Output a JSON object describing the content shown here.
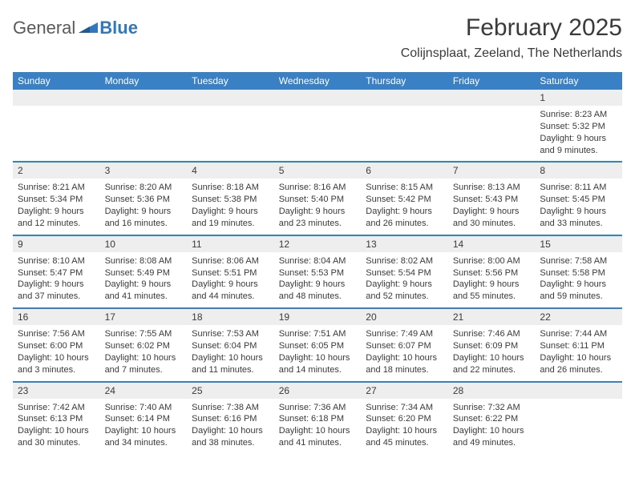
{
  "colors": {
    "header_bg": "#3a80c4",
    "header_text": "#ffffff",
    "daynum_bg": "#eeeeee",
    "text": "#3a3a3a",
    "week_border": "#3a80c4",
    "blue_brand": "#2f78bd",
    "gray_brand": "#5a5a5a"
  },
  "logo": {
    "part1": "General",
    "part2": "Blue"
  },
  "title": {
    "main": "February 2025",
    "location": "Colijnsplaat, Zeeland, The Netherlands"
  },
  "day_headers": [
    "Sunday",
    "Monday",
    "Tuesday",
    "Wednesday",
    "Thursday",
    "Friday",
    "Saturday"
  ],
  "weeks": [
    [
      {
        "blank": true
      },
      {
        "blank": true
      },
      {
        "blank": true
      },
      {
        "blank": true
      },
      {
        "blank": true
      },
      {
        "blank": true
      },
      {
        "num": "1",
        "sunrise": "Sunrise: 8:23 AM",
        "sunset": "Sunset: 5:32 PM",
        "daylight1": "Daylight: 9 hours",
        "daylight2": "and 9 minutes."
      }
    ],
    [
      {
        "num": "2",
        "sunrise": "Sunrise: 8:21 AM",
        "sunset": "Sunset: 5:34 PM",
        "daylight1": "Daylight: 9 hours",
        "daylight2": "and 12 minutes."
      },
      {
        "num": "3",
        "sunrise": "Sunrise: 8:20 AM",
        "sunset": "Sunset: 5:36 PM",
        "daylight1": "Daylight: 9 hours",
        "daylight2": "and 16 minutes."
      },
      {
        "num": "4",
        "sunrise": "Sunrise: 8:18 AM",
        "sunset": "Sunset: 5:38 PM",
        "daylight1": "Daylight: 9 hours",
        "daylight2": "and 19 minutes."
      },
      {
        "num": "5",
        "sunrise": "Sunrise: 8:16 AM",
        "sunset": "Sunset: 5:40 PM",
        "daylight1": "Daylight: 9 hours",
        "daylight2": "and 23 minutes."
      },
      {
        "num": "6",
        "sunrise": "Sunrise: 8:15 AM",
        "sunset": "Sunset: 5:42 PM",
        "daylight1": "Daylight: 9 hours",
        "daylight2": "and 26 minutes."
      },
      {
        "num": "7",
        "sunrise": "Sunrise: 8:13 AM",
        "sunset": "Sunset: 5:43 PM",
        "daylight1": "Daylight: 9 hours",
        "daylight2": "and 30 minutes."
      },
      {
        "num": "8",
        "sunrise": "Sunrise: 8:11 AM",
        "sunset": "Sunset: 5:45 PM",
        "daylight1": "Daylight: 9 hours",
        "daylight2": "and 33 minutes."
      }
    ],
    [
      {
        "num": "9",
        "sunrise": "Sunrise: 8:10 AM",
        "sunset": "Sunset: 5:47 PM",
        "daylight1": "Daylight: 9 hours",
        "daylight2": "and 37 minutes."
      },
      {
        "num": "10",
        "sunrise": "Sunrise: 8:08 AM",
        "sunset": "Sunset: 5:49 PM",
        "daylight1": "Daylight: 9 hours",
        "daylight2": "and 41 minutes."
      },
      {
        "num": "11",
        "sunrise": "Sunrise: 8:06 AM",
        "sunset": "Sunset: 5:51 PM",
        "daylight1": "Daylight: 9 hours",
        "daylight2": "and 44 minutes."
      },
      {
        "num": "12",
        "sunrise": "Sunrise: 8:04 AM",
        "sunset": "Sunset: 5:53 PM",
        "daylight1": "Daylight: 9 hours",
        "daylight2": "and 48 minutes."
      },
      {
        "num": "13",
        "sunrise": "Sunrise: 8:02 AM",
        "sunset": "Sunset: 5:54 PM",
        "daylight1": "Daylight: 9 hours",
        "daylight2": "and 52 minutes."
      },
      {
        "num": "14",
        "sunrise": "Sunrise: 8:00 AM",
        "sunset": "Sunset: 5:56 PM",
        "daylight1": "Daylight: 9 hours",
        "daylight2": "and 55 minutes."
      },
      {
        "num": "15",
        "sunrise": "Sunrise: 7:58 AM",
        "sunset": "Sunset: 5:58 PM",
        "daylight1": "Daylight: 9 hours",
        "daylight2": "and 59 minutes."
      }
    ],
    [
      {
        "num": "16",
        "sunrise": "Sunrise: 7:56 AM",
        "sunset": "Sunset: 6:00 PM",
        "daylight1": "Daylight: 10 hours",
        "daylight2": "and 3 minutes."
      },
      {
        "num": "17",
        "sunrise": "Sunrise: 7:55 AM",
        "sunset": "Sunset: 6:02 PM",
        "daylight1": "Daylight: 10 hours",
        "daylight2": "and 7 minutes."
      },
      {
        "num": "18",
        "sunrise": "Sunrise: 7:53 AM",
        "sunset": "Sunset: 6:04 PM",
        "daylight1": "Daylight: 10 hours",
        "daylight2": "and 11 minutes."
      },
      {
        "num": "19",
        "sunrise": "Sunrise: 7:51 AM",
        "sunset": "Sunset: 6:05 PM",
        "daylight1": "Daylight: 10 hours",
        "daylight2": "and 14 minutes."
      },
      {
        "num": "20",
        "sunrise": "Sunrise: 7:49 AM",
        "sunset": "Sunset: 6:07 PM",
        "daylight1": "Daylight: 10 hours",
        "daylight2": "and 18 minutes."
      },
      {
        "num": "21",
        "sunrise": "Sunrise: 7:46 AM",
        "sunset": "Sunset: 6:09 PM",
        "daylight1": "Daylight: 10 hours",
        "daylight2": "and 22 minutes."
      },
      {
        "num": "22",
        "sunrise": "Sunrise: 7:44 AM",
        "sunset": "Sunset: 6:11 PM",
        "daylight1": "Daylight: 10 hours",
        "daylight2": "and 26 minutes."
      }
    ],
    [
      {
        "num": "23",
        "sunrise": "Sunrise: 7:42 AM",
        "sunset": "Sunset: 6:13 PM",
        "daylight1": "Daylight: 10 hours",
        "daylight2": "and 30 minutes."
      },
      {
        "num": "24",
        "sunrise": "Sunrise: 7:40 AM",
        "sunset": "Sunset: 6:14 PM",
        "daylight1": "Daylight: 10 hours",
        "daylight2": "and 34 minutes."
      },
      {
        "num": "25",
        "sunrise": "Sunrise: 7:38 AM",
        "sunset": "Sunset: 6:16 PM",
        "daylight1": "Daylight: 10 hours",
        "daylight2": "and 38 minutes."
      },
      {
        "num": "26",
        "sunrise": "Sunrise: 7:36 AM",
        "sunset": "Sunset: 6:18 PM",
        "daylight1": "Daylight: 10 hours",
        "daylight2": "and 41 minutes."
      },
      {
        "num": "27",
        "sunrise": "Sunrise: 7:34 AM",
        "sunset": "Sunset: 6:20 PM",
        "daylight1": "Daylight: 10 hours",
        "daylight2": "and 45 minutes."
      },
      {
        "num": "28",
        "sunrise": "Sunrise: 7:32 AM",
        "sunset": "Sunset: 6:22 PM",
        "daylight1": "Daylight: 10 hours",
        "daylight2": "and 49 minutes."
      },
      {
        "blank": true
      }
    ]
  ]
}
